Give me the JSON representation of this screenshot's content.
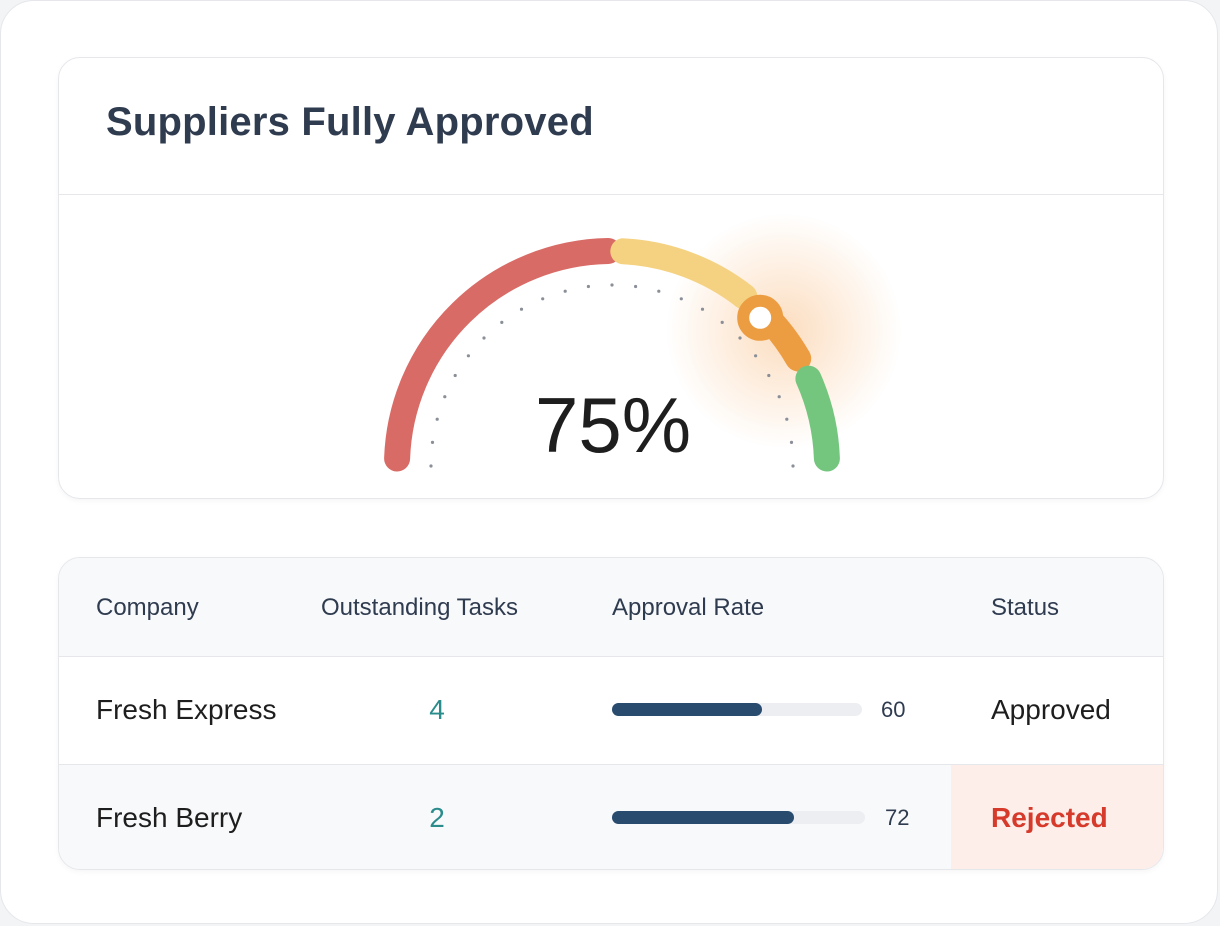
{
  "gauge": {
    "title": "Suppliers Fully Approved",
    "value_label": "75%",
    "value": 75,
    "colors": {
      "red": "#d96b66",
      "yellow": "#f5d281",
      "orange": "#ec9d42",
      "green": "#74c67f",
      "ticks": "#8a8f98"
    }
  },
  "table": {
    "headers": {
      "company": "Company",
      "tasks": "Outstanding Tasks",
      "rate": "Approval Rate",
      "status": "Status"
    },
    "rows": [
      {
        "company": "Fresh Express",
        "tasks": "4",
        "rate": 60,
        "rate_label": "60",
        "status": "Approved"
      },
      {
        "company": "Fresh Berry",
        "tasks": "2",
        "rate": 72,
        "rate_label": "72",
        "status": "Rejected"
      }
    ]
  }
}
